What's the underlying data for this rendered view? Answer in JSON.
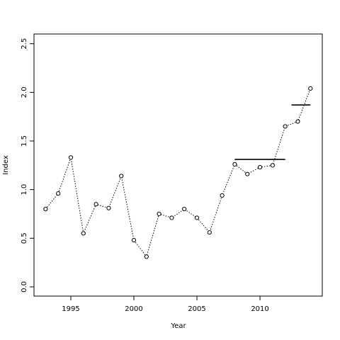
{
  "chart_data": {
    "type": "line",
    "x_label": "Year",
    "y_label": "Index",
    "x": [
      1993,
      1994,
      1995,
      1996,
      1997,
      1998,
      1999,
      2000,
      2001,
      2002,
      2003,
      2004,
      2005,
      2006,
      2007,
      2008,
      2009,
      2010,
      2011,
      2012,
      2013,
      2014
    ],
    "series": [
      {
        "color": "#000000",
        "values": [
          0.8,
          0.96,
          1.33,
          0.55,
          0.85,
          0.81,
          1.14,
          0.48,
          0.31,
          0.75,
          0.71,
          0.8,
          0.71,
          0.56,
          0.94,
          1.26,
          1.16,
          1.23,
          1.25,
          1.65,
          1.7,
          2.04
        ]
      }
    ],
    "segments": [
      {
        "x": [
          2008,
          2012
        ],
        "value": 1.31
      },
      {
        "x": [
          2012.5,
          2014
        ],
        "value": 1.87
      }
    ],
    "xlim": [
      1992.08,
      2014.94
    ],
    "ylim": [
      -0.095,
      2.6
    ],
    "xticks": [
      1995,
      2000,
      2005,
      2010
    ],
    "yticks": [
      {
        "value": 0,
        "label": "0.0"
      },
      0.5,
      {
        "value": 1,
        "label": "1.0"
      },
      1.5,
      {
        "value": 2,
        "label": "2.0"
      },
      2.5
    ]
  }
}
